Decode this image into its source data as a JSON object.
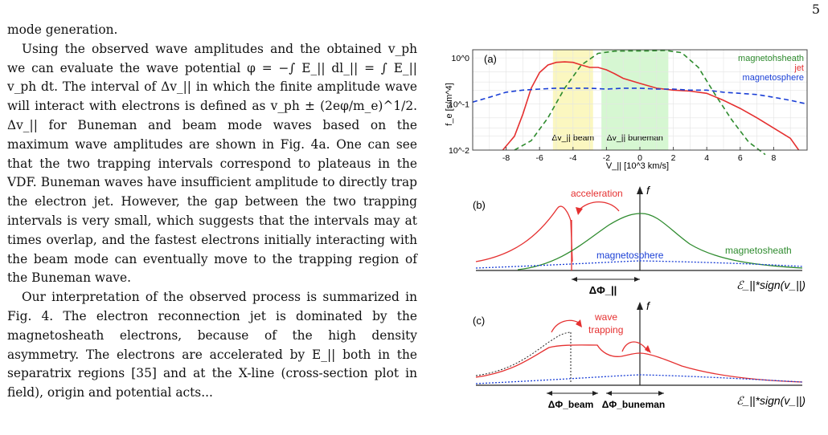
{
  "page_number": "5",
  "body": {
    "paragraphs": [
      "mode generation.",
      "Using the observed wave amplitudes and the obtained v_ph we can evaluate the wave potential φ = −∫ E_|| dl_|| = ∫ E_|| v_ph dt. The interval of Δv_|| in which the finite amplitude wave will interact with electrons is defined as v_ph ± (2eφ/m_e)^1/2. Δv_|| for Buneman and beam mode waves based on the maximum wave amplitudes are shown in Fig. 4a. One can see that the two trapping intervals correspond to plateaus in the VDF. Buneman waves have insufficient amplitude to directly trap the electron jet. However, the gap between the two trapping intervals is very small, which suggests that the intervals may at times overlap, and the fastest electrons initially interacting with the beam mode can eventually move to the trapping region of the Buneman wave.",
      "Our interpretation of the observed process is summarized in Fig. 4. The electron reconnection jet is dominated by the magnetosheath electrons, because of the high density asymmetry. The electrons are accelerated by E_|| both in the separatrix regions [35] and at the X-line (cross-section plot in field), origin and potential acts..."
    ]
  },
  "chart_data": [
    {
      "type": "line",
      "panel_label": "(a)",
      "ylabel": "f_e [s/m^4]",
      "xlabel": "V_|| [10^3 km/s]",
      "yscale": "log",
      "ylim": [
        0.01,
        1.5
      ],
      "xlim": [
        -10,
        10
      ],
      "x_ticks": [
        -8,
        -6,
        -4,
        -2,
        0,
        2,
        4,
        6,
        8
      ],
      "y_ticks": [
        "10^0",
        "10^-1",
        "10^-2"
      ],
      "grid": true,
      "legend": [
        "magnetohsheath",
        "jet",
        "magnetosphere"
      ],
      "shaded_bands": [
        {
          "label": "Δv_|| beam",
          "x": [
            -5.2,
            -2.8
          ],
          "color": "#fbf7c0"
        },
        {
          "label": "Δv_|| buneman",
          "x": [
            -2.3,
            1.7
          ],
          "color": "#d6f7d2"
        }
      ],
      "series": [
        {
          "name": "magnetohsheath",
          "color": "#2e8b2e",
          "dash": "dashed",
          "x": [
            -7.5,
            -6.5,
            -5.5,
            -4.5,
            -3.5,
            -2.5,
            -1.5,
            -0.5,
            0.5,
            1.5,
            2.5,
            3.5,
            4.5,
            5.5,
            6.5,
            7.5
          ],
          "y": [
            0.01,
            0.016,
            0.05,
            0.22,
            0.7,
            1.25,
            1.4,
            1.42,
            1.42,
            1.45,
            1.3,
            0.62,
            0.16,
            0.045,
            0.015,
            0.008
          ]
        },
        {
          "name": "jet",
          "color": "#e53030",
          "dash": "solid",
          "x": [
            -8.2,
            -7.5,
            -7.0,
            -6.5,
            -6.0,
            -5.5,
            -5.0,
            -4.5,
            -4.0,
            -3.5,
            -3.0,
            -2.5,
            -2.0,
            -1.5,
            -1.0,
            0.0,
            1.0,
            2.0,
            3.0,
            4.0,
            5.0,
            6.0,
            7.0,
            8.0,
            9.0,
            9.5
          ],
          "y": [
            0.01,
            0.02,
            0.06,
            0.22,
            0.48,
            0.7,
            0.8,
            0.82,
            0.8,
            0.7,
            0.62,
            0.62,
            0.55,
            0.45,
            0.36,
            0.28,
            0.22,
            0.2,
            0.19,
            0.17,
            0.12,
            0.08,
            0.05,
            0.03,
            0.018,
            0.01
          ]
        },
        {
          "name": "magnetosphere",
          "color": "#1a3fd6",
          "dash": "dashed",
          "x": [
            -10,
            -9,
            -8,
            -7,
            -6,
            -5,
            -4,
            -3,
            -2,
            -1,
            0,
            1,
            2,
            3,
            4,
            5,
            6,
            7,
            8,
            9,
            10
          ],
          "y": [
            0.11,
            0.14,
            0.18,
            0.2,
            0.21,
            0.22,
            0.22,
            0.22,
            0.21,
            0.22,
            0.22,
            0.21,
            0.21,
            0.2,
            0.2,
            0.18,
            0.17,
            0.16,
            0.14,
            0.12,
            0.1
          ]
        }
      ]
    },
    {
      "type": "diagram",
      "panel_label": "(b)",
      "y_axis_label": "f",
      "x_axis_label": "ℰ_||*sign(v_||)",
      "annotations": [
        "acceleration",
        "magnetosphere",
        "magnetosheath",
        "ΔΦ_||"
      ]
    },
    {
      "type": "diagram",
      "panel_label": "(c)",
      "y_axis_label": "f",
      "x_axis_label": "ℰ_||*sign(v_||)",
      "annotations": [
        "wave",
        "trapping",
        "ΔΦ_beam",
        "ΔΦ_buneman"
      ]
    }
  ],
  "colors": {
    "red": "#e53030",
    "green": "#2e8b2e",
    "blue": "#1a3fd6"
  }
}
